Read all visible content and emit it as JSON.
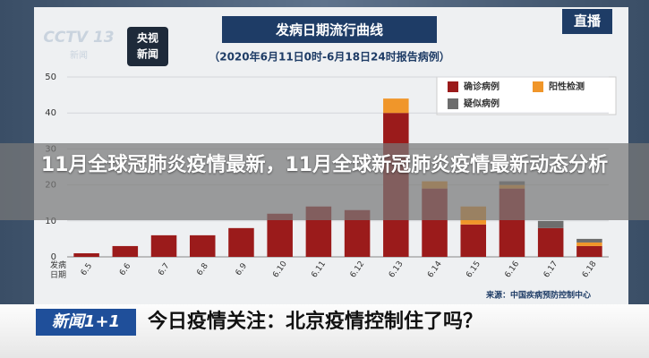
{
  "article_title": "11月全球冠肺炎疫情最新，11月全球新冠肺炎疫情最新动态分析",
  "branding": {
    "channel": "CCTV 13",
    "channel_sub": "新闻",
    "app_top": "央视",
    "app_bottom": "新闻",
    "live": "直播"
  },
  "lower_third": {
    "program": "新闻1+1",
    "headline": "今日疫情关注：北京疫情控制住了吗？"
  },
  "chart_data": {
    "type": "stacked_bar",
    "title": "发病日期流行曲线",
    "subtitle": "（2020年6月11日0时-6月18日24时报告病例）",
    "x_label": "发病日期",
    "source": "来源：中国疾病预防控制中心",
    "categories": [
      "6.5",
      "6.6",
      "6.7",
      "6.8",
      "6.9",
      "6.10",
      "6.11",
      "6.12",
      "6.13",
      "6.14",
      "6.15",
      "6.16",
      "6.17",
      "6.18"
    ],
    "series": [
      {
        "name": "确诊病例",
        "color": "#9b1b1b",
        "values": [
          1,
          3,
          6,
          6,
          8,
          12,
          14,
          13,
          40,
          19,
          9,
          19,
          8,
          3
        ]
      },
      {
        "name": "阳性检测",
        "color": "#f0962a",
        "values": [
          0,
          0,
          0,
          0,
          0,
          0,
          0,
          0,
          4,
          2,
          5,
          1,
          0,
          1
        ]
      },
      {
        "name": "疑似病例",
        "color": "#6d6d6d",
        "values": [
          0,
          0,
          0,
          0,
          0,
          0,
          0,
          0,
          0,
          0,
          0,
          1,
          2,
          1
        ]
      }
    ],
    "ylim": [
      0,
      50
    ],
    "yticks": [
      0,
      10,
      20,
      30,
      40,
      50
    ],
    "grid": true
  }
}
